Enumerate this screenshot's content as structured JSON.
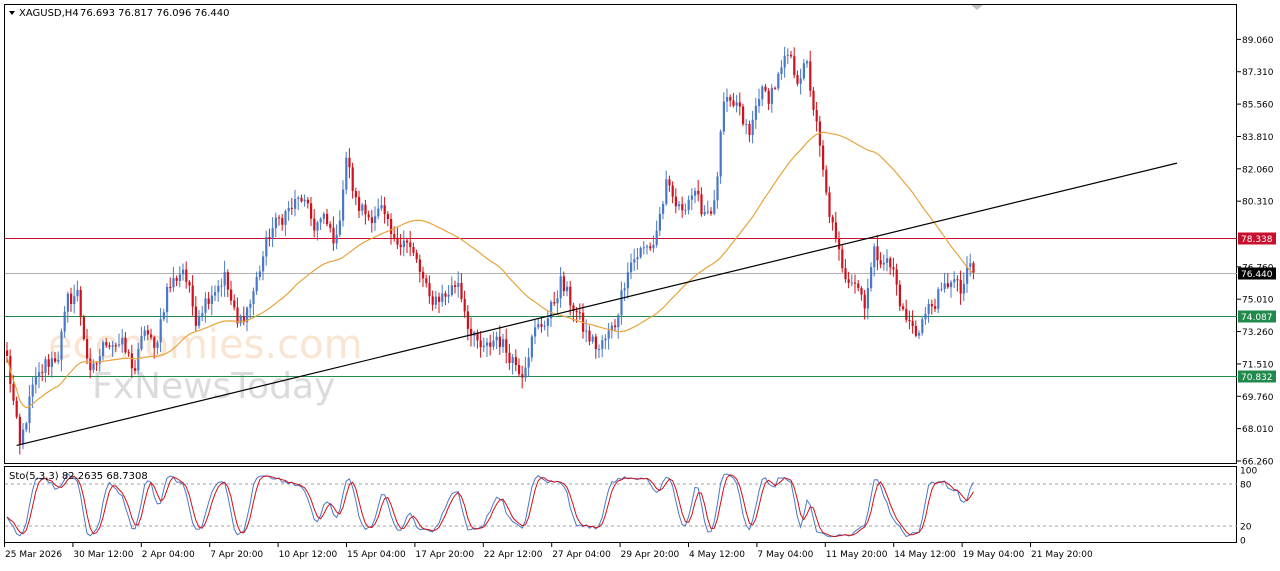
{
  "header": {
    "symbol": "XAGUSD,H4",
    "ohlc": "76.693 76.817 76.096 76.440"
  },
  "stoch": {
    "label": "Sto(5,3,3) 82.2635 68.7308"
  },
  "watermark": {
    "line1": "economies.com",
    "line2": "FxNewsToday"
  },
  "colors": {
    "bull": "#4a78c8",
    "bear": "#d0101a",
    "ma": "#e8a33c",
    "resistance": "#c8102e",
    "support": "#1f8a4c",
    "trendline": "#000000",
    "stoch_main": "#4a78c8",
    "stoch_signal": "#d0101a",
    "current_price_tag": "#000000"
  },
  "chart_data": [
    {
      "type": "candlestick",
      "title": "XAGUSD,H4",
      "ylim": [
        66.26,
        90.0
      ],
      "y_ticks": [
        "89.060",
        "87.310",
        "85.560",
        "83.810",
        "82.060",
        "80.310",
        "76.760",
        "75.010",
        "73.260",
        "71.510",
        "69.760",
        "68.010",
        "66.260"
      ],
      "x_ticks": [
        "25 Mar 2026",
        "30 Mar 12:00",
        "2 Apr 04:00",
        "7 Apr 20:00",
        "10 Apr 12:00",
        "15 Apr 04:00",
        "17 Apr 20:00",
        "22 Apr 12:00",
        "27 Apr 04:00",
        "29 Apr 20:00",
        "4 May 12:00",
        "7 May 04:00",
        "11 May 20:00",
        "14 May 12:00",
        "19 May 04:00",
        "21 May 20:00"
      ],
      "levels": [
        {
          "label": "78.338",
          "value": 78.338,
          "kind": "resistance"
        },
        {
          "label": "74.087",
          "value": 74.087,
          "kind": "support"
        },
        {
          "label": "70.832",
          "value": 70.832,
          "kind": "support"
        }
      ],
      "current_price": {
        "label": "76.440",
        "value": 76.44
      },
      "trendline": {
        "from": {
          "bar": 3,
          "price": 67.1
        },
        "to": {
          "bar": 193,
          "price": 75.1
        }
      },
      "price_path": [
        [
          0,
          71.8
        ],
        [
          4,
          67.0
        ],
        [
          8,
          70.2
        ],
        [
          12,
          71.5
        ],
        [
          16,
          72.0
        ],
        [
          19,
          75.0
        ],
        [
          22,
          75.3
        ],
        [
          26,
          70.8
        ],
        [
          31,
          72.8
        ],
        [
          36,
          72.5
        ],
        [
          40,
          71.2
        ],
        [
          43,
          73.5
        ],
        [
          46,
          72.2
        ],
        [
          50,
          75.5
        ],
        [
          55,
          76.7
        ],
        [
          59,
          74.0
        ],
        [
          63,
          75.2
        ],
        [
          68,
          76.2
        ],
        [
          72,
          73.6
        ],
        [
          76,
          74.8
        ],
        [
          82,
          78.6
        ],
        [
          85,
          79.3
        ],
        [
          92,
          80.5
        ],
        [
          96,
          79.0
        ],
        [
          99,
          79.3
        ],
        [
          103,
          78.1
        ],
        [
          106,
          82.7
        ],
        [
          109,
          80.2
        ],
        [
          113,
          79.5
        ],
        [
          117,
          79.8
        ],
        [
          121,
          78.0
        ],
        [
          124,
          78.4
        ],
        [
          128,
          77.0
        ],
        [
          132,
          75.0
        ],
        [
          137,
          75.2
        ],
        [
          141,
          76.0
        ],
        [
          145,
          73.0
        ],
        [
          149,
          72.2
        ],
        [
          153,
          73.0
        ],
        [
          157,
          72.0
        ],
        [
          161,
          71.1
        ],
        [
          165,
          73.3
        ],
        [
          169,
          74.0
        ],
        [
          173,
          75.9
        ],
        [
          177,
          74.6
        ],
        [
          181,
          73.1
        ],
        [
          185,
          72.3
        ],
        [
          190,
          73.7
        ],
        [
          194,
          76.8
        ],
        [
          198,
          77.6
        ],
        [
          202,
          78.0
        ],
        [
          206,
          81.1
        ],
        [
          210,
          79.8
        ],
        [
          214,
          80.7
        ],
        [
          218,
          79.8
        ],
        [
          221,
          80.0
        ],
        [
          224,
          85.5
        ],
        [
          228,
          85.5
        ],
        [
          232,
          83.8
        ],
        [
          235,
          86.2
        ],
        [
          238,
          86.0
        ],
        [
          241,
          86.9
        ],
        [
          244,
          88.2
        ],
        [
          247,
          87.0
        ],
        [
          250,
          87.6
        ],
        [
          253,
          84.3
        ],
        [
          256,
          80.6
        ],
        [
          259,
          78.0
        ],
        [
          262,
          76.4
        ],
        [
          265,
          76.0
        ],
        [
          268,
          74.9
        ],
        [
          271,
          77.5
        ],
        [
          274,
          77.2
        ],
        [
          277,
          76.5
        ],
        [
          280,
          74.2
        ],
        [
          284,
          73.2
        ],
        [
          288,
          74.5
        ],
        [
          292,
          75.3
        ],
        [
          295,
          76.2
        ],
        [
          298,
          75.4
        ],
        [
          301,
          76.8
        ],
        [
          302,
          76.44
        ]
      ]
    },
    {
      "type": "line",
      "title": "Sto(5,3,3) 82.2635 68.7308",
      "ylim": [
        0,
        100
      ],
      "y_ticks": [
        "100",
        "80",
        "20",
        "0"
      ],
      "levels": [
        80,
        20
      ],
      "series": [
        {
          "values_at_end": 82.2635
        },
        {
          "values_at_end": 68.7308
        }
      ]
    }
  ]
}
